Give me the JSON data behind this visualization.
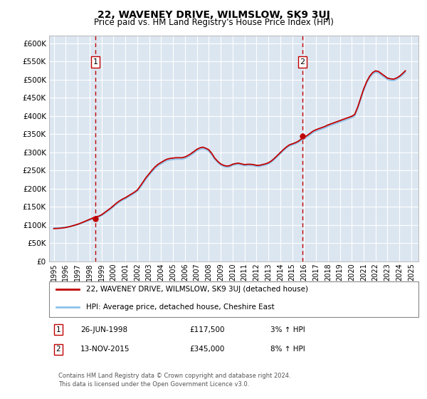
{
  "title": "22, WAVENEY DRIVE, WILMSLOW, SK9 3UJ",
  "subtitle": "Price paid vs. HM Land Registry's House Price Index (HPI)",
  "ylim": [
    0,
    620000
  ],
  "yticks": [
    0,
    50000,
    100000,
    150000,
    200000,
    250000,
    300000,
    350000,
    400000,
    450000,
    500000,
    550000,
    600000
  ],
  "xlim_start": 1994.6,
  "xlim_end": 2025.6,
  "bg_color": "#dce6f1",
  "grid_color": "#ffffff",
  "transaction1_date": 1998.48,
  "transaction1_price": 117500,
  "transaction2_date": 2015.87,
  "transaction2_price": 345000,
  "transaction1_label": "1",
  "transaction2_label": "2",
  "legend_line1": "22, WAVENEY DRIVE, WILMSLOW, SK9 3UJ (detached house)",
  "legend_line2": "HPI: Average price, detached house, Cheshire East",
  "note1_num": "1",
  "note1_date": "26-JUN-1998",
  "note1_price": "£117,500",
  "note1_hpi": "3% ↑ HPI",
  "note2_num": "2",
  "note2_date": "13-NOV-2015",
  "note2_price": "£345,000",
  "note2_hpi": "8% ↑ HPI",
  "footer": "Contains HM Land Registry data © Crown copyright and database right 2024.\nThis data is licensed under the Open Government Licence v3.0.",
  "hpi_color": "#8dc3e8",
  "price_color": "#c00000",
  "marker_color": "#c00000",
  "hpi_years": [
    1995.0,
    1995.25,
    1995.5,
    1995.75,
    1996.0,
    1996.25,
    1996.5,
    1996.75,
    1997.0,
    1997.25,
    1997.5,
    1997.75,
    1998.0,
    1998.25,
    1998.5,
    1998.75,
    1999.0,
    1999.25,
    1999.5,
    1999.75,
    2000.0,
    2000.25,
    2000.5,
    2000.75,
    2001.0,
    2001.25,
    2001.5,
    2001.75,
    2002.0,
    2002.25,
    2002.5,
    2002.75,
    2003.0,
    2003.25,
    2003.5,
    2003.75,
    2004.0,
    2004.25,
    2004.5,
    2004.75,
    2005.0,
    2005.25,
    2005.5,
    2005.75,
    2006.0,
    2006.25,
    2006.5,
    2006.75,
    2007.0,
    2007.25,
    2007.5,
    2007.75,
    2008.0,
    2008.25,
    2008.5,
    2008.75,
    2009.0,
    2009.25,
    2009.5,
    2009.75,
    2010.0,
    2010.25,
    2010.5,
    2010.75,
    2011.0,
    2011.25,
    2011.5,
    2011.75,
    2012.0,
    2012.25,
    2012.5,
    2012.75,
    2013.0,
    2013.25,
    2013.5,
    2013.75,
    2014.0,
    2014.25,
    2014.5,
    2014.75,
    2015.0,
    2015.25,
    2015.5,
    2015.75,
    2016.0,
    2016.25,
    2016.5,
    2016.75,
    2017.0,
    2017.25,
    2017.5,
    2017.75,
    2018.0,
    2018.25,
    2018.5,
    2018.75,
    2019.0,
    2019.25,
    2019.5,
    2019.75,
    2020.0,
    2020.25,
    2020.5,
    2020.75,
    2021.0,
    2021.25,
    2021.5,
    2021.75,
    2022.0,
    2022.25,
    2022.5,
    2022.75,
    2023.0,
    2023.25,
    2023.5,
    2023.75,
    2024.0,
    2024.25,
    2024.5
  ],
  "hpi_values": [
    92000,
    91500,
    92000,
    93000,
    94000,
    95500,
    97000,
    99000,
    101000,
    104000,
    107000,
    110000,
    113000,
    116000,
    119000,
    122000,
    126000,
    131000,
    137000,
    143000,
    150000,
    157000,
    163000,
    168000,
    172000,
    177000,
    182000,
    187000,
    193000,
    203000,
    215000,
    227000,
    237000,
    247000,
    256000,
    263000,
    268000,
    273000,
    277000,
    279000,
    280000,
    281000,
    281000,
    281000,
    283000,
    287000,
    292000,
    298000,
    304000,
    308000,
    310000,
    308000,
    303000,
    293000,
    281000,
    272000,
    265000,
    261000,
    259000,
    260000,
    264000,
    266000,
    267000,
    265000,
    263000,
    264000,
    264000,
    263000,
    261000,
    261000,
    263000,
    265000,
    268000,
    273000,
    280000,
    288000,
    296000,
    304000,
    311000,
    317000,
    320000,
    323000,
    327000,
    332000,
    337000,
    342000,
    348000,
    354000,
    358000,
    361000,
    364000,
    367000,
    371000,
    374000,
    377000,
    380000,
    383000,
    386000,
    389000,
    392000,
    395000,
    400000,
    420000,
    445000,
    470000,
    490000,
    505000,
    515000,
    520000,
    518000,
    512000,
    506000,
    500000,
    498000,
    497000,
    500000,
    505000,
    512000,
    520000
  ],
  "price_years": [
    1995.0,
    1995.25,
    1995.5,
    1995.75,
    1996.0,
    1996.25,
    1996.5,
    1996.75,
    1997.0,
    1997.25,
    1997.5,
    1997.75,
    1998.0,
    1998.25,
    1998.5,
    1998.75,
    1999.0,
    1999.25,
    1999.5,
    1999.75,
    2000.0,
    2000.25,
    2000.5,
    2000.75,
    2001.0,
    2001.25,
    2001.5,
    2001.75,
    2002.0,
    2002.25,
    2002.5,
    2002.75,
    2003.0,
    2003.25,
    2003.5,
    2003.75,
    2004.0,
    2004.25,
    2004.5,
    2004.75,
    2005.0,
    2005.25,
    2005.5,
    2005.75,
    2006.0,
    2006.25,
    2006.5,
    2006.75,
    2007.0,
    2007.25,
    2007.5,
    2007.75,
    2008.0,
    2008.25,
    2008.5,
    2008.75,
    2009.0,
    2009.25,
    2009.5,
    2009.75,
    2010.0,
    2010.25,
    2010.5,
    2010.75,
    2011.0,
    2011.25,
    2011.5,
    2011.75,
    2012.0,
    2012.25,
    2012.5,
    2012.75,
    2013.0,
    2013.25,
    2013.5,
    2013.75,
    2014.0,
    2014.25,
    2014.5,
    2014.75,
    2015.0,
    2015.25,
    2015.5,
    2015.75,
    2016.0,
    2016.25,
    2016.5,
    2016.75,
    2017.0,
    2017.25,
    2017.5,
    2017.75,
    2018.0,
    2018.25,
    2018.5,
    2018.75,
    2019.0,
    2019.25,
    2019.5,
    2019.75,
    2020.0,
    2020.25,
    2020.5,
    2020.75,
    2021.0,
    2021.25,
    2021.5,
    2021.75,
    2022.0,
    2022.25,
    2022.5,
    2022.75,
    2023.0,
    2023.25,
    2023.5,
    2023.75,
    2024.0,
    2024.25,
    2024.5
  ],
  "price_values": [
    90000,
    90500,
    91000,
    92000,
    93000,
    95000,
    97000,
    99500,
    102000,
    105000,
    108500,
    112000,
    115500,
    119000,
    122500,
    124000,
    128000,
    134000,
    140000,
    146000,
    153000,
    160000,
    166000,
    171000,
    175000,
    180000,
    185000,
    190000,
    196000,
    207000,
    219000,
    231000,
    241000,
    251000,
    260000,
    267000,
    272000,
    277000,
    281000,
    283000,
    284000,
    285000,
    285000,
    285000,
    287000,
    291000,
    296000,
    302000,
    308000,
    312000,
    314000,
    311000,
    307000,
    297000,
    284000,
    275000,
    268000,
    264000,
    262000,
    263000,
    267000,
    269000,
    270000,
    268000,
    266000,
    267000,
    267000,
    266000,
    264000,
    264000,
    266000,
    268000,
    271000,
    276000,
    283000,
    291000,
    299000,
    307000,
    314000,
    320000,
    323000,
    326000,
    330000,
    336000,
    341000,
    346000,
    352000,
    358000,
    362000,
    365000,
    368000,
    371000,
    375000,
    378000,
    381000,
    384000,
    387000,
    390000,
    393000,
    396000,
    399000,
    404000,
    424000,
    449000,
    474000,
    494000,
    509000,
    519000,
    524000,
    522000,
    516000,
    510000,
    504000,
    502000,
    501000,
    504000,
    509000,
    516000,
    524000
  ]
}
